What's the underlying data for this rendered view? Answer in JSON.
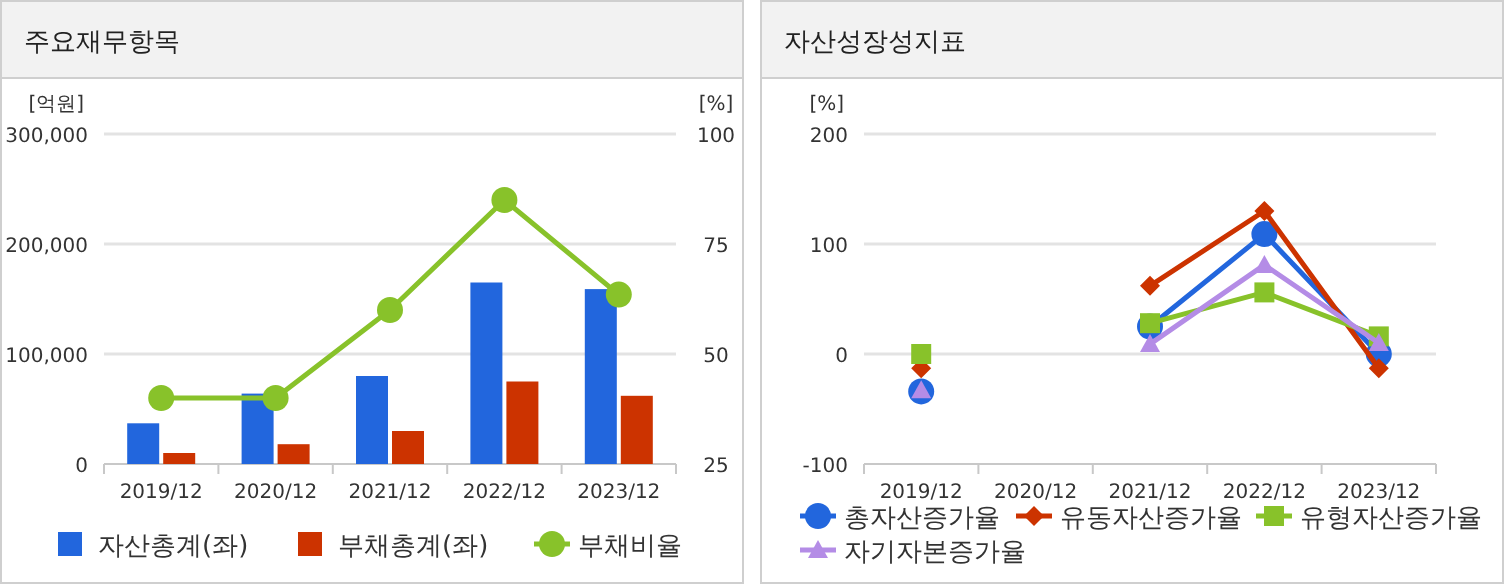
{
  "chart_data": [
    {
      "type": "bar",
      "title": "주요재무항목",
      "ylabel": "[억원]",
      "y2label": "[%]",
      "categories": [
        "2019/12",
        "2020/12",
        "2021/12",
        "2022/12",
        "2023/12"
      ],
      "series": [
        {
          "name": "자산총계(좌)",
          "color": "#2266dd",
          "values": [
            37000,
            64000,
            80000,
            165000,
            159000
          ]
        },
        {
          "name": "부채총계(좌)",
          "color": "#cc3300",
          "values": [
            10000,
            18000,
            30000,
            75000,
            62000
          ]
        },
        {
          "name": "부채비율",
          "type": "line",
          "axis": "y2",
          "color": "#88c22a",
          "marker": "circle",
          "values": [
            40,
            40,
            60,
            85,
            63.5
          ]
        }
      ],
      "ylim": [
        0,
        300000
      ],
      "yticks": [
        {
          "value": 0,
          "label": "0"
        },
        {
          "value": 100000,
          "label": "100,000"
        },
        {
          "value": 200000,
          "label": "200,000"
        },
        {
          "value": 300000,
          "label": "300,000"
        }
      ],
      "y2lim": [
        25,
        100
      ],
      "y2ticks": [
        25,
        50,
        75,
        100
      ],
      "grid": "y",
      "legend": "bottom"
    },
    {
      "type": "line",
      "title": "자산성장성지표",
      "ylabel": "[%]",
      "categories": [
        "2019/12",
        "2020/12",
        "2021/12",
        "2022/12",
        "2023/12"
      ],
      "series": [
        {
          "name": "총자산증가율",
          "color": "#2266dd",
          "marker": "circle",
          "values": [
            -34,
            null,
            25,
            109,
            0
          ]
        },
        {
          "name": "유동자산증가율",
          "color": "#cc3300",
          "marker": "diamond",
          "values": [
            -13,
            null,
            62,
            130,
            -13
          ]
        },
        {
          "name": "유형자산증가율",
          "color": "#88c22a",
          "marker": "square",
          "values": [
            0,
            null,
            28,
            56,
            16
          ]
        },
        {
          "name": "자기자본증가율",
          "color": "#b48ce6",
          "marker": "triangle",
          "values": [
            -33,
            null,
            9,
            81,
            10
          ]
        }
      ],
      "ylim": [
        -100,
        200
      ],
      "yticks": [
        -100,
        0,
        100,
        200
      ],
      "grid": "y",
      "legend": "bottom"
    }
  ]
}
